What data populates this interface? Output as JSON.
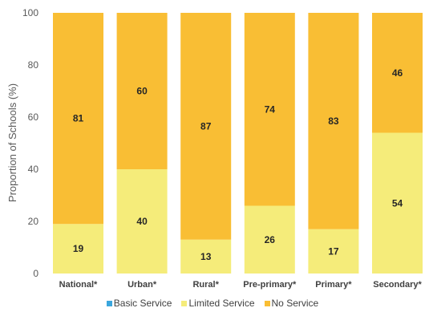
{
  "chart_data": {
    "type": "bar",
    "stacked": true,
    "categories": [
      "National*",
      "Urban*",
      "Rural*",
      "Pre-primary*",
      "Primary*",
      "Secondary*"
    ],
    "series": [
      {
        "name": "Basic Service",
        "color": "#3AA6DD",
        "values": [
          0,
          0,
          0,
          0,
          0,
          0
        ]
      },
      {
        "name": "Limited Service",
        "color": "#F5EC7A",
        "values": [
          19,
          40,
          13,
          26,
          17,
          54
        ]
      },
      {
        "name": "No Service",
        "color": "#F9BE34",
        "values": [
          81,
          60,
          87,
          74,
          83,
          46
        ]
      }
    ],
    "ylabel": "Proportion of Schools (%)",
    "ylim": [
      0,
      100
    ],
    "yticks": [
      0,
      20,
      40,
      60,
      80,
      100
    ],
    "legend_position": "bottom",
    "grid": false
  }
}
